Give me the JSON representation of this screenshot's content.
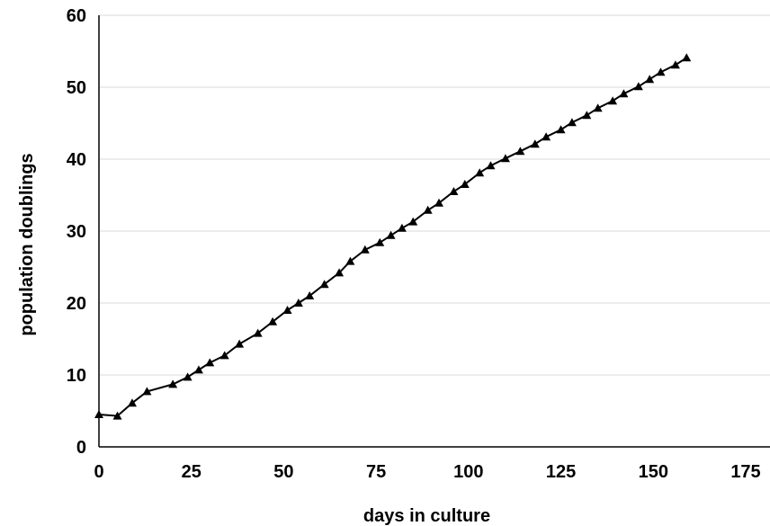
{
  "chart_data": {
    "type": "line",
    "title": "",
    "xlabel": "days in culture",
    "ylabel": "population doublings",
    "xlim": [
      0,
      175
    ],
    "ylim": [
      0,
      60
    ],
    "xticks": [
      0,
      25,
      50,
      75,
      100,
      125,
      150,
      175
    ],
    "yticks": [
      0,
      10,
      20,
      30,
      40,
      50,
      60
    ],
    "grid": "horizontal",
    "legend": "none",
    "colors": {
      "line": "#000000",
      "marker": "#000000",
      "grid": "#d9d9d9",
      "axis": "#000000"
    },
    "marker": "triangle",
    "series": [
      {
        "x": [
          0,
          5,
          9,
          13,
          20,
          24,
          27,
          30,
          34,
          38,
          43,
          47,
          51,
          54,
          57,
          61,
          65,
          68,
          72,
          76,
          79,
          82,
          85,
          89,
          92,
          96,
          99,
          103,
          106,
          110,
          114,
          118,
          121,
          125,
          128,
          132,
          135,
          139,
          142,
          146,
          149,
          152,
          156,
          159
        ],
        "y": [
          4.5,
          4.3,
          6.1,
          7.7,
          8.7,
          9.7,
          10.7,
          11.7,
          12.7,
          14.3,
          15.8,
          17.4,
          19.0,
          20.0,
          21.0,
          22.6,
          24.2,
          25.8,
          27.4,
          28.4,
          29.4,
          30.4,
          31.3,
          32.9,
          33.9,
          35.5,
          36.5,
          38.1,
          39.1,
          40.1,
          41.1,
          42.1,
          43.1,
          44.1,
          45.1,
          46.1,
          47.1,
          48.1,
          49.1,
          50.1,
          51.1,
          52.1,
          53.1,
          54.1
        ]
      }
    ]
  }
}
